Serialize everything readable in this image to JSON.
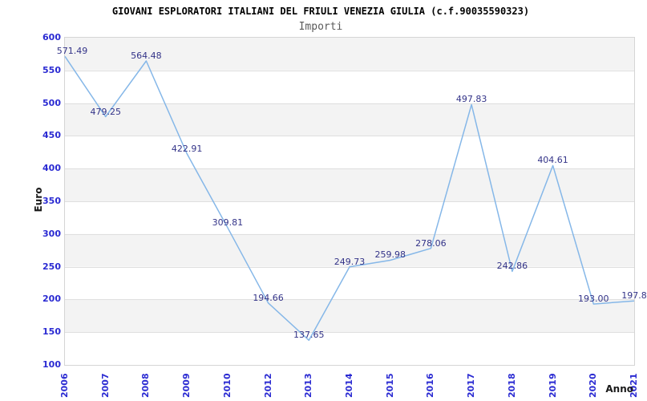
{
  "chart_data": {
    "type": "line",
    "title": "GIOVANI ESPLORATORI ITALIANI DEL FRIULI VENEZIA GIULIA (c.f.90035590323)",
    "subtitle": "Importi",
    "xlabel": "Anno",
    "ylabel": "Euro",
    "categories": [
      "2006",
      "2007",
      "2008",
      "2009",
      "2010",
      "2012",
      "2013",
      "2014",
      "2015",
      "2016",
      "2017",
      "2018",
      "2019",
      "2020",
      "2021"
    ],
    "values": [
      571.49,
      479.25,
      564.48,
      422.91,
      309.81,
      194.66,
      137.65,
      249.73,
      259.98,
      278.06,
      497.83,
      242.86,
      404.61,
      193.0,
      197.8
    ],
    "point_labels": [
      "571.49",
      "479.25",
      "564.48",
      "422.91",
      "309.81",
      "194.66",
      "137.65",
      "249.73",
      "259.98",
      "278.06",
      "497.83",
      "242.86",
      "404.61",
      "193.00",
      "197.8"
    ],
    "ylim": [
      100,
      600
    ],
    "ytick_step": 50,
    "grid": "horizontal-only",
    "legend": "none",
    "band_fill_order": "gray-band-at-top-alternating",
    "colors": {
      "line": "#85b7e8",
      "tick_label": "#2a2ad2",
      "point_label": "#333388",
      "band": "#f3f3f3",
      "gridline": "#dfdfdf",
      "plot_border": "#d5d5d5",
      "title": "#000000",
      "subtitle": "#5a5a5a",
      "axis_title": "#1a1a1a"
    }
  }
}
